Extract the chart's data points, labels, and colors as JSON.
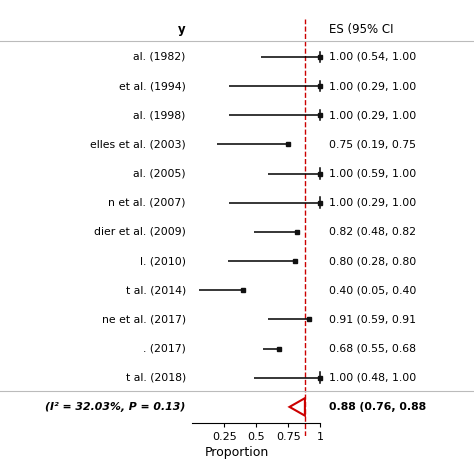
{
  "studies": [
    {
      "label": "al. (1982)",
      "es": 1.0,
      "ci_lo": 0.54,
      "ci_hi": 1.0,
      "truncated_hi": true
    },
    {
      "label": "et al. (1994)",
      "es": 1.0,
      "ci_lo": 0.29,
      "ci_hi": 1.0,
      "truncated_hi": true
    },
    {
      "label": "al. (1998)",
      "es": 1.0,
      "ci_lo": 0.29,
      "ci_hi": 1.0,
      "truncated_hi": true
    },
    {
      "label": "elles et al. (2003)",
      "es": 0.75,
      "ci_lo": 0.19,
      "ci_hi": 0.75,
      "truncated_hi": false
    },
    {
      "label": "al. (2005)",
      "es": 1.0,
      "ci_lo": 0.59,
      "ci_hi": 1.0,
      "truncated_hi": true
    },
    {
      "label": "n et al. (2007)",
      "es": 1.0,
      "ci_lo": 0.29,
      "ci_hi": 1.0,
      "truncated_hi": true
    },
    {
      "label": "dier et al. (2009)",
      "es": 0.82,
      "ci_lo": 0.48,
      "ci_hi": 0.82,
      "truncated_hi": false
    },
    {
      "label": "l. (2010)",
      "es": 0.8,
      "ci_lo": 0.28,
      "ci_hi": 0.8,
      "truncated_hi": false
    },
    {
      "label": "t al. (2014)",
      "es": 0.4,
      "ci_lo": 0.05,
      "ci_hi": 0.4,
      "truncated_hi": false
    },
    {
      "label": "ne et al. (2017)",
      "es": 0.91,
      "ci_lo": 0.59,
      "ci_hi": 0.91,
      "truncated_hi": false
    },
    {
      "label": ". (2017)",
      "es": 0.68,
      "ci_lo": 0.55,
      "ci_hi": 0.68,
      "truncated_hi": false
    },
    {
      "label": "t al. (2018)",
      "es": 1.0,
      "ci_lo": 0.48,
      "ci_hi": 1.0,
      "truncated_hi": true
    }
  ],
  "pooled": {
    "es": 0.88,
    "ci_lo": 0.76,
    "ci_hi": 0.88
  },
  "pooled_label_bold": "(I² = 32.03%, P = 0.13)",
  "es_header": "ES (95% CI",
  "xlabel": "Proportion",
  "xlim": [
    0.0,
    1.05
  ],
  "xticks": [
    0.25,
    0.5,
    0.75,
    1.0
  ],
  "xticklabels": [
    "0.25",
    "0.5",
    "0.75",
    "1"
  ],
  "ref_line_x": 0.88,
  "background_color": "#ffffff",
  "line_color": "#000000",
  "ref_line_color": "#cc0000",
  "diamond_color": "#cc0000",
  "square_color": "#111111",
  "header_title_left": "y",
  "header_sep_color": "#bbbbbb"
}
